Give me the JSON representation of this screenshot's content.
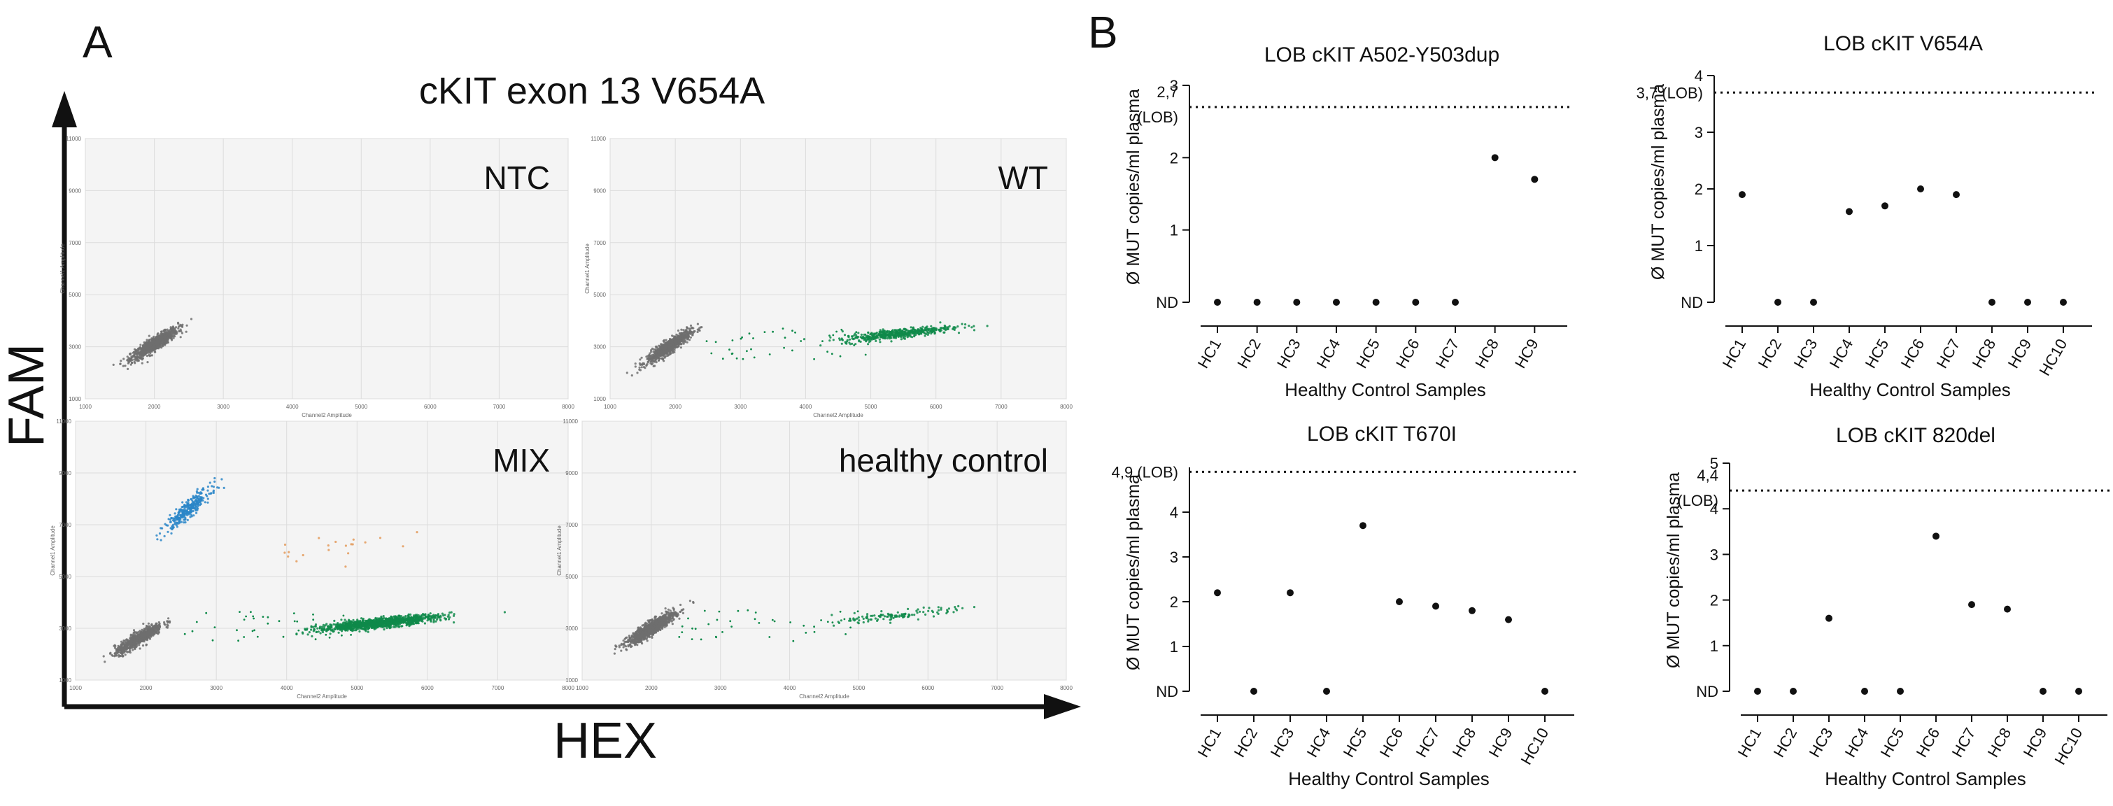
{
  "panel_a": {
    "letter": "A",
    "title": "cKIT exon 13 V654A",
    "y_axis": "FAM",
    "x_axis": "HEX",
    "sub_x_label": "Channel2 Amplitude",
    "sub_y_label": "Channel1 Amplitude",
    "y_ticks": [
      "11000",
      "9000",
      "7000",
      "5000",
      "3000",
      "1000"
    ],
    "x_ticks": [
      "1000",
      "2000",
      "3000",
      "4000",
      "5000",
      "6000",
      "7000",
      "8000"
    ],
    "colors": {
      "negative": "#6e6e6e",
      "fam_positive": "#2a86c8",
      "hex_positive": "#0f8a4a",
      "double": "#e39a5a",
      "plot_bg": "#f4f4f4",
      "grid": "#dcdcdc"
    }
  },
  "panel_b": {
    "letter": "B"
  },
  "chart_data": [
    {
      "type": "scatter",
      "panel": "A",
      "title": "NTC",
      "xlabel": "Channel2 Amplitude",
      "ylabel": "Channel1 Amplitude",
      "xlim": [
        1000,
        8000
      ],
      "ylim": [
        1000,
        11000
      ],
      "clusters": [
        {
          "name": "negative",
          "center": [
            2000,
            3100
          ],
          "n": 900
        }
      ]
    },
    {
      "type": "scatter",
      "panel": "A",
      "title": "WT",
      "xlabel": "Channel2 Amplitude",
      "ylabel": "Channel1 Amplitude",
      "xlim": [
        1000,
        8000
      ],
      "ylim": [
        1000,
        11000
      ],
      "clusters": [
        {
          "name": "negative",
          "center": [
            1900,
            3000
          ],
          "n": 800
        },
        {
          "name": "HEX positive",
          "center": [
            5400,
            3500
          ],
          "n": 500
        }
      ]
    },
    {
      "type": "scatter",
      "panel": "A",
      "title": "MIX",
      "xlabel": "Channel2 Amplitude",
      "ylabel": "Channel1 Amplitude",
      "xlim": [
        1000,
        8000
      ],
      "ylim": [
        1000,
        11000
      ],
      "clusters": [
        {
          "name": "negative",
          "center": [
            1900,
            2600
          ],
          "n": 700
        },
        {
          "name": "FAM positive",
          "center": [
            2600,
            7600
          ],
          "n": 300
        },
        {
          "name": "HEX positive",
          "center": [
            5300,
            3200
          ],
          "n": 1200
        },
        {
          "name": "double positive",
          "center": [
            4800,
            6200
          ],
          "n": 20
        }
      ]
    },
    {
      "type": "scatter",
      "panel": "A",
      "title": "healthy control",
      "xlabel": "Channel2 Amplitude",
      "ylabel": "Channel1 Amplitude",
      "xlim": [
        1000,
        8000
      ],
      "ylim": [
        1000,
        11000
      ],
      "clusters": [
        {
          "name": "negative",
          "center": [
            2000,
            3000
          ],
          "n": 1100
        },
        {
          "name": "HEX positive",
          "center": [
            5600,
            3500
          ],
          "n": 120
        }
      ]
    },
    {
      "type": "scatter",
      "panel": "B",
      "title": "LOB cKIT A502-Y503dup",
      "ylabel": "Ø MUT copies/ml plasma",
      "xlabel": "Healthy Control Samples",
      "categories": [
        "HC1",
        "HC2",
        "HC3",
        "HC4",
        "HC5",
        "HC6",
        "HC7",
        "HC8",
        "HC9"
      ],
      "values": [
        0,
        0,
        0,
        0,
        0,
        0,
        0,
        2.0,
        1.7
      ],
      "ylim": [
        0,
        3
      ],
      "y_ticks": [
        "ND",
        "1",
        "2",
        "3"
      ],
      "lob": 2.7,
      "lob_label_1": "2,7",
      "lob_label_2": "(LOB)"
    },
    {
      "type": "scatter",
      "panel": "B",
      "title": "LOB cKIT V654A",
      "ylabel": "Ø MUT copies/ml plasma",
      "xlabel": "Healthy Control Samples",
      "categories": [
        "HC1",
        "HC2",
        "HC3",
        "HC4",
        "HC5",
        "HC6",
        "HC7",
        "HC8",
        "HC9",
        "HC10"
      ],
      "values": [
        1.9,
        0,
        0,
        1.6,
        1.7,
        2.0,
        1.9,
        0,
        0,
        0
      ],
      "ylim": [
        0,
        4
      ],
      "y_ticks": [
        "ND",
        "1",
        "2",
        "3",
        "4"
      ],
      "lob": 3.7,
      "lob_label_1": "3,7 (LOB)"
    },
    {
      "type": "scatter",
      "panel": "B",
      "title": "LOB cKIT T670I",
      "ylabel": "Ø MUT copies/ml plasma",
      "xlabel": "Healthy Control Samples",
      "categories": [
        "HC1",
        "HC2",
        "HC3",
        "HC4",
        "HC5",
        "HC6",
        "HC7",
        "HC8",
        "HC9",
        "HC10"
      ],
      "values": [
        2.2,
        0,
        2.2,
        0,
        3.7,
        2.0,
        1.9,
        1.8,
        1.6,
        0
      ],
      "ylim": [
        0,
        5
      ],
      "y_ticks": [
        "ND",
        "1",
        "2",
        "3",
        "4"
      ],
      "lob": 4.9,
      "lob_label_1": "4,9 (LOB)"
    },
    {
      "type": "scatter",
      "panel": "B",
      "title": "LOB cKIT 820del",
      "ylabel": "Ø MUT copies/ml plasma",
      "xlabel": "Healthy Control Samples",
      "categories": [
        "HC1",
        "HC2",
        "HC3",
        "HC4",
        "HC5",
        "HC6",
        "HC7",
        "HC8",
        "HC9",
        "HC10"
      ],
      "values": [
        0,
        0,
        1.6,
        0,
        0,
        3.4,
        1.9,
        1.8,
        0,
        0
      ],
      "ylim": [
        0,
        5
      ],
      "y_ticks": [
        "ND",
        "1",
        "2",
        "3",
        "4",
        "5"
      ],
      "lob": 4.4,
      "lob_label_1": "4,4",
      "lob_label_2": "(LOB)"
    }
  ]
}
